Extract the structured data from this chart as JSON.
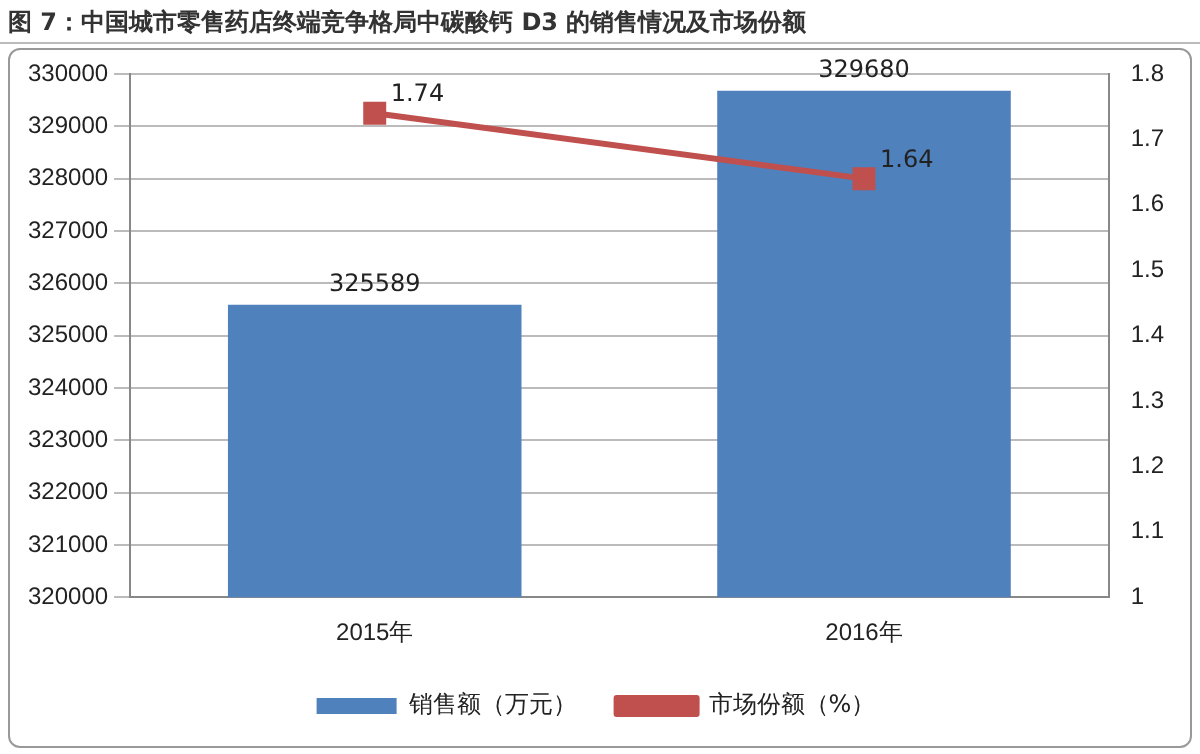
{
  "chart_data": {
    "type": "bar",
    "title": "图 7：中国城市零售药店终端竞争格局中碳酸钙 D3 的销售情况及市场份额",
    "categories": [
      "2015年",
      "2016年"
    ],
    "series": [
      {
        "name": "销售额（万元）",
        "color": "#4f81bd",
        "values": [
          325589,
          329680
        ]
      },
      {
        "name": "市场份额（%）",
        "type": "line",
        "axis": "y2",
        "color": "#c0504d",
        "values": [
          1.74,
          1.64
        ]
      }
    ],
    "ylim": [
      320000,
      330000
    ],
    "yticks": [
      320000,
      321000,
      322000,
      323000,
      324000,
      325000,
      326000,
      327000,
      328000,
      329000,
      330000
    ],
    "y2lim": [
      1,
      1.8
    ],
    "y2ticks": [
      1,
      1.1,
      1.2,
      1.3,
      1.4,
      1.5,
      1.6,
      1.7,
      1.8
    ],
    "grid": "y",
    "legend": "bottom",
    "marker": "square",
    "data_labels": true
  }
}
